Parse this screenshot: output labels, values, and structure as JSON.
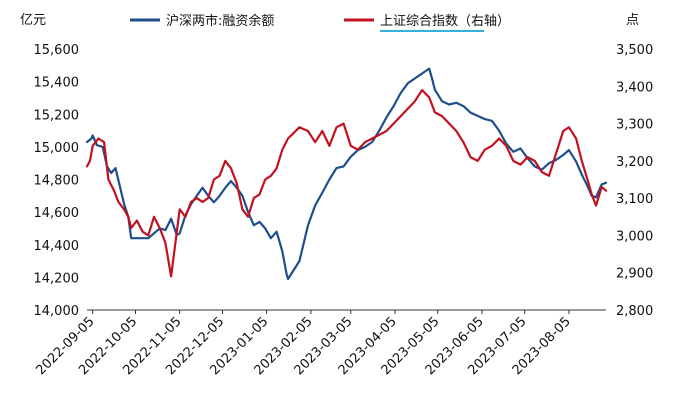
{
  "chart_data": {
    "type": "line",
    "title": "",
    "left_unit": "亿元",
    "right_unit": "点",
    "x_range": [
      "2022-09-01",
      "2023-08-31"
    ],
    "x_ticks": [
      "2022-09-05",
      "2022-10-05",
      "2022-11-05",
      "2022-12-05",
      "2023-01-05",
      "2023-02-05",
      "2023-03-05",
      "2023-04-05",
      "2023-05-05",
      "2023-06-05",
      "2023-07-05",
      "2023-08-05"
    ],
    "y_left": {
      "min": 14000,
      "max": 15600,
      "ticks": [
        "14,000",
        "14,200",
        "14,400",
        "14,600",
        "14,800",
        "15,000",
        "15,200",
        "15,400",
        "15,600"
      ]
    },
    "y_right": {
      "min": 2800,
      "max": 3500,
      "ticks": [
        "2,800",
        "2,900",
        "3,000",
        "3,100",
        "3,200",
        "3,300",
        "3,400",
        "3,500"
      ]
    },
    "legend_placement": "top",
    "grid": false,
    "series": [
      {
        "name": "沪深两市:融资余额",
        "axis": "left",
        "color": "#1f4e8c",
        "points": [
          [
            "2022-09-01",
            15030
          ],
          [
            "2022-09-04",
            15050
          ],
          [
            "2022-09-05",
            15070
          ],
          [
            "2022-09-08",
            15010
          ],
          [
            "2022-09-12",
            15000
          ],
          [
            "2022-09-15",
            14880
          ],
          [
            "2022-09-18",
            14840
          ],
          [
            "2022-09-21",
            14870
          ],
          [
            "2022-09-24",
            14760
          ],
          [
            "2022-09-27",
            14650
          ],
          [
            "2022-09-30",
            14570
          ],
          [
            "2022-10-02",
            14440
          ],
          [
            "2022-10-06",
            14440
          ],
          [
            "2022-10-10",
            14440
          ],
          [
            "2022-10-14",
            14440
          ],
          [
            "2022-10-18",
            14470
          ],
          [
            "2022-10-22",
            14500
          ],
          [
            "2022-10-26",
            14490
          ],
          [
            "2022-10-30",
            14560
          ],
          [
            "2022-11-03",
            14460
          ],
          [
            "2022-11-05",
            14470
          ],
          [
            "2022-11-09",
            14580
          ],
          [
            "2022-11-13",
            14650
          ],
          [
            "2022-11-17",
            14700
          ],
          [
            "2022-11-21",
            14750
          ],
          [
            "2022-11-25",
            14700
          ],
          [
            "2022-11-29",
            14660
          ],
          [
            "2022-12-03",
            14700
          ],
          [
            "2022-12-07",
            14750
          ],
          [
            "2022-12-11",
            14790
          ],
          [
            "2022-12-15",
            14750
          ],
          [
            "2022-12-19",
            14700
          ],
          [
            "2022-12-23",
            14600
          ],
          [
            "2022-12-27",
            14520
          ],
          [
            "2022-12-31",
            14540
          ],
          [
            "2023-01-04",
            14500
          ],
          [
            "2023-01-08",
            14440
          ],
          [
            "2023-01-12",
            14480
          ],
          [
            "2023-01-16",
            14360
          ],
          [
            "2023-01-19",
            14220
          ],
          [
            "2023-01-20",
            14190
          ],
          [
            "2023-01-28",
            14300
          ],
          [
            "2023-02-03",
            14520
          ],
          [
            "2023-02-08",
            14640
          ],
          [
            "2023-02-13",
            14720
          ],
          [
            "2023-02-18",
            14800
          ],
          [
            "2023-02-23",
            14870
          ],
          [
            "2023-02-28",
            14880
          ],
          [
            "2023-03-05",
            14940
          ],
          [
            "2023-03-10",
            14980
          ],
          [
            "2023-03-15",
            15000
          ],
          [
            "2023-03-20",
            15030
          ],
          [
            "2023-03-25",
            15100
          ],
          [
            "2023-03-30",
            15180
          ],
          [
            "2023-04-04",
            15250
          ],
          [
            "2023-04-09",
            15330
          ],
          [
            "2023-04-14",
            15390
          ],
          [
            "2023-04-19",
            15420
          ],
          [
            "2023-04-24",
            15450
          ],
          [
            "2023-04-29",
            15480
          ],
          [
            "2023-05-01",
            15420
          ],
          [
            "2023-05-03",
            15350
          ],
          [
            "2023-05-08",
            15280
          ],
          [
            "2023-05-13",
            15260
          ],
          [
            "2023-05-18",
            15270
          ],
          [
            "2023-05-23",
            15250
          ],
          [
            "2023-05-28",
            15210
          ],
          [
            "2023-06-02",
            15190
          ],
          [
            "2023-06-07",
            15170
          ],
          [
            "2023-06-12",
            15160
          ],
          [
            "2023-06-17",
            15100
          ],
          [
            "2023-06-22",
            15020
          ],
          [
            "2023-06-27",
            14970
          ],
          [
            "2023-07-02",
            14990
          ],
          [
            "2023-07-07",
            14930
          ],
          [
            "2023-07-12",
            14880
          ],
          [
            "2023-07-17",
            14860
          ],
          [
            "2023-07-22",
            14900
          ],
          [
            "2023-07-27",
            14920
          ],
          [
            "2023-08-01",
            14950
          ],
          [
            "2023-08-05",
            14980
          ],
          [
            "2023-08-10",
            14910
          ],
          [
            "2023-08-14",
            14830
          ],
          [
            "2023-08-18",
            14760
          ],
          [
            "2023-08-21",
            14700
          ],
          [
            "2023-08-24",
            14690
          ],
          [
            "2023-08-28",
            14770
          ],
          [
            "2023-08-31",
            14780
          ]
        ]
      },
      {
        "name": "上证综合指数（右轴）",
        "axis": "right",
        "color": "#c1121f",
        "points": [
          [
            "2022-09-01",
            3185
          ],
          [
            "2022-09-03",
            3200
          ],
          [
            "2022-09-05",
            3240
          ],
          [
            "2022-09-09",
            3260
          ],
          [
            "2022-09-13",
            3250
          ],
          [
            "2022-09-16",
            3150
          ],
          [
            "2022-09-20",
            3120
          ],
          [
            "2022-09-23",
            3090
          ],
          [
            "2022-09-27",
            3070
          ],
          [
            "2022-09-30",
            3050
          ],
          [
            "2022-10-02",
            3020
          ],
          [
            "2022-10-06",
            3040
          ],
          [
            "2022-10-10",
            3010
          ],
          [
            "2022-10-14",
            3000
          ],
          [
            "2022-10-18",
            3050
          ],
          [
            "2022-10-22",
            3020
          ],
          [
            "2022-10-26",
            2980
          ],
          [
            "2022-10-30",
            2890
          ],
          [
            "2022-11-05",
            3070
          ],
          [
            "2022-11-09",
            3050
          ],
          [
            "2022-11-13",
            3090
          ],
          [
            "2022-11-17",
            3100
          ],
          [
            "2022-11-21",
            3090
          ],
          [
            "2022-11-25",
            3100
          ],
          [
            "2022-11-29",
            3150
          ],
          [
            "2022-12-03",
            3160
          ],
          [
            "2022-12-07",
            3200
          ],
          [
            "2022-12-11",
            3180
          ],
          [
            "2022-12-15",
            3140
          ],
          [
            "2022-12-19",
            3070
          ],
          [
            "2022-12-23",
            3050
          ],
          [
            "2022-12-27",
            3100
          ],
          [
            "2022-12-31",
            3110
          ],
          [
            "2023-01-04",
            3150
          ],
          [
            "2023-01-08",
            3160
          ],
          [
            "2023-01-12",
            3180
          ],
          [
            "2023-01-16",
            3230
          ],
          [
            "2023-01-20",
            3260
          ],
          [
            "2023-01-28",
            3290
          ],
          [
            "2023-02-03",
            3280
          ],
          [
            "2023-02-08",
            3250
          ],
          [
            "2023-02-13",
            3280
          ],
          [
            "2023-02-18",
            3240
          ],
          [
            "2023-02-23",
            3290
          ],
          [
            "2023-02-28",
            3300
          ],
          [
            "2023-03-05",
            3240
          ],
          [
            "2023-03-10",
            3230
          ],
          [
            "2023-03-15",
            3250
          ],
          [
            "2023-03-20",
            3260
          ],
          [
            "2023-03-25",
            3270
          ],
          [
            "2023-03-30",
            3280
          ],
          [
            "2023-04-04",
            3300
          ],
          [
            "2023-04-09",
            3320
          ],
          [
            "2023-04-14",
            3340
          ],
          [
            "2023-04-19",
            3360
          ],
          [
            "2023-04-24",
            3390
          ],
          [
            "2023-04-29",
            3370
          ],
          [
            "2023-05-03",
            3330
          ],
          [
            "2023-05-08",
            3320
          ],
          [
            "2023-05-13",
            3300
          ],
          [
            "2023-05-18",
            3280
          ],
          [
            "2023-05-23",
            3250
          ],
          [
            "2023-05-28",
            3210
          ],
          [
            "2023-06-02",
            3200
          ],
          [
            "2023-06-07",
            3230
          ],
          [
            "2023-06-12",
            3240
          ],
          [
            "2023-06-17",
            3260
          ],
          [
            "2023-06-22",
            3240
          ],
          [
            "2023-06-27",
            3200
          ],
          [
            "2023-07-02",
            3190
          ],
          [
            "2023-07-07",
            3210
          ],
          [
            "2023-07-12",
            3200
          ],
          [
            "2023-07-17",
            3170
          ],
          [
            "2023-07-22",
            3160
          ],
          [
            "2023-07-27",
            3220
          ],
          [
            "2023-08-01",
            3280
          ],
          [
            "2023-08-05",
            3290
          ],
          [
            "2023-08-10",
            3260
          ],
          [
            "2023-08-14",
            3200
          ],
          [
            "2023-08-18",
            3150
          ],
          [
            "2023-08-21",
            3110
          ],
          [
            "2023-08-24",
            3080
          ],
          [
            "2023-08-28",
            3130
          ],
          [
            "2023-08-31",
            3120
          ]
        ]
      }
    ]
  }
}
